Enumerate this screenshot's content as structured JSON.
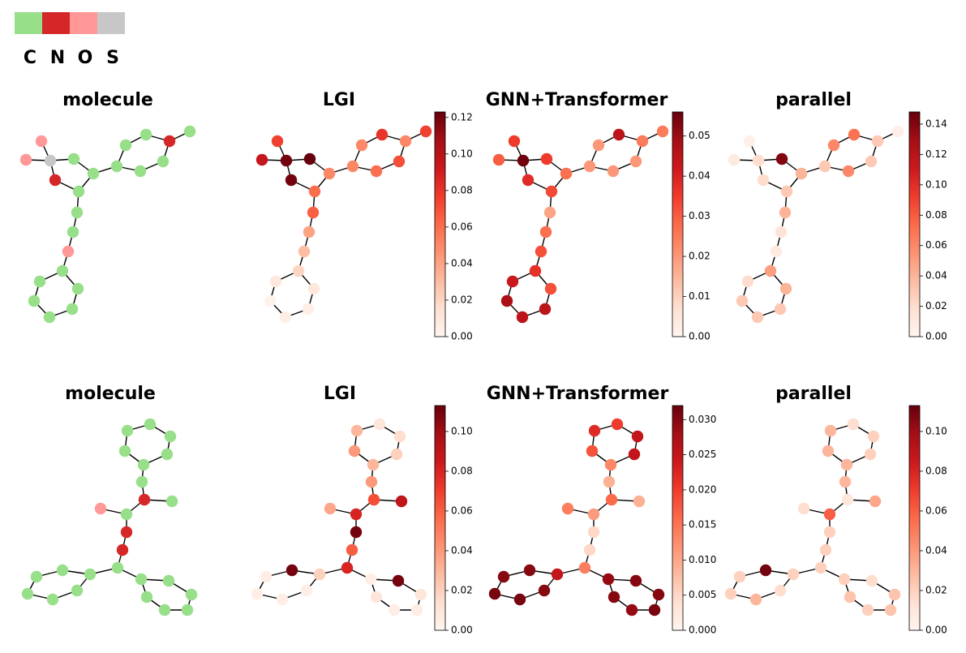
{
  "legend": [
    {
      "label": "C",
      "color": "#98df8a"
    },
    {
      "label": "N",
      "color": "#d62728"
    },
    {
      "label": "O",
      "color": "#ff9896"
    },
    {
      "label": "S",
      "color": "#c7c7c7"
    }
  ],
  "rows": [
    {
      "panels": [
        {
          "title": "molecule",
          "mode": "element",
          "values": [
            "O",
            "O",
            "S",
            "N",
            "C",
            "C",
            "C",
            "C",
            "N",
            "C",
            "C",
            "C",
            "C",
            "C",
            "C",
            "C",
            "O",
            "C",
            "C",
            "C",
            "C",
            "C",
            "C",
            "C"
          ]
        },
        {
          "title": "LGI",
          "mode": "heat",
          "vmax": 0.123,
          "ticks": [
            "0.00",
            "0.02",
            "0.04",
            "0.06",
            "0.08",
            "0.10",
            "0.12"
          ],
          "values": [
            0.075,
            0.095,
            0.12,
            0.12,
            0.123,
            0.05,
            0.06,
            0.05,
            0.05,
            0.08,
            0.05,
            0.06,
            0.07,
            0.075,
            0.065,
            0.04,
            0.03,
            0.02,
            0.01,
            0.005,
            0.005,
            0.002,
            0.01,
            0.01
          ]
        },
        {
          "title": "GNN+Transformer",
          "mode": "heat",
          "vmax": 0.056,
          "ticks": [
            "0.00",
            "0.01",
            "0.02",
            "0.03",
            "0.04",
            "0.05"
          ],
          "values": [
            0.035,
            0.03,
            0.055,
            0.038,
            0.035,
            0.027,
            0.033,
            0.02,
            0.025,
            0.045,
            0.02,
            0.02,
            0.02,
            0.025,
            0.018,
            0.027,
            0.032,
            0.037,
            0.032,
            0.045,
            0.045,
            0.048,
            0.042,
            0.048
          ]
        },
        {
          "title": "parallel",
          "mode": "heat",
          "vmax": 0.148,
          "ticks": [
            "0.00",
            "0.02",
            "0.04",
            "0.06",
            "0.08",
            "0.10",
            "0.12",
            "0.14"
          ],
          "values": [
            0.005,
            0.01,
            0.02,
            0.02,
            0.14,
            0.04,
            0.03,
            0.03,
            0.03,
            0.07,
            0.06,
            0.06,
            0.03,
            0.005,
            0.04,
            0.015,
            0.01,
            0.05,
            0.04,
            0.03,
            0.03,
            0.03,
            0.02,
            0.03
          ]
        }
      ]
    },
    {
      "panels": [
        {
          "title": "molecule",
          "mode": "element",
          "values": [
            "C",
            "C",
            "C",
            "C",
            "C",
            "C",
            "C",
            "N",
            "C",
            "C",
            "O",
            "N",
            "N",
            "C",
            "C",
            "C",
            "C",
            "C",
            "C",
            "C",
            "C",
            "C",
            "C",
            "C",
            "C",
            "C"
          ]
        },
        {
          "title": "LGI",
          "mode": "heat",
          "vmax": 0.113,
          "ticks": [
            "0.00",
            "0.02",
            "0.04",
            "0.06",
            "0.08",
            "0.10"
          ],
          "values": [
            0.01,
            0.015,
            0.02,
            0.03,
            0.04,
            0.03,
            0.04,
            0.065,
            0.09,
            0.08,
            0.035,
            0.11,
            0.06,
            0.08,
            0.02,
            0.11,
            0.005,
            0.005,
            0.005,
            0.005,
            0.005,
            0.11,
            0.01,
            0.005,
            0.005,
            0.01
          ]
        },
        {
          "title": "GNN+Transformer",
          "mode": "heat",
          "vmax": 0.032,
          "ticks": [
            "0.000",
            "0.005",
            "0.010",
            "0.015",
            "0.020",
            "0.025",
            "0.030"
          ],
          "values": [
            0.02,
            0.025,
            0.025,
            0.013,
            0.018,
            0.022,
            0.009,
            0.016,
            0.009,
            0.011,
            0.014,
            0.005,
            0.005,
            0.014,
            0.025,
            0.03,
            0.03,
            0.031,
            0.031,
            0.03,
            0.029,
            0.03,
            0.03,
            0.031,
            0.029,
            0.03
          ]
        },
        {
          "title": "parallel",
          "mode": "heat",
          "vmax": 0.113,
          "ticks": [
            "0.00",
            "0.02",
            "0.04",
            "0.06",
            "0.08",
            "0.10"
          ],
          "values": [
            0.015,
            0.02,
            0.02,
            0.03,
            0.03,
            0.03,
            0.03,
            0.01,
            0.035,
            0.06,
            0.015,
            0.02,
            0.02,
            0.02,
            0.02,
            0.11,
            0.02,
            0.02,
            0.03,
            0.015,
            0.02,
            0.015,
            0.025,
            0.025,
            0.02,
            0.025
          ]
        }
      ]
    }
  ]
}
